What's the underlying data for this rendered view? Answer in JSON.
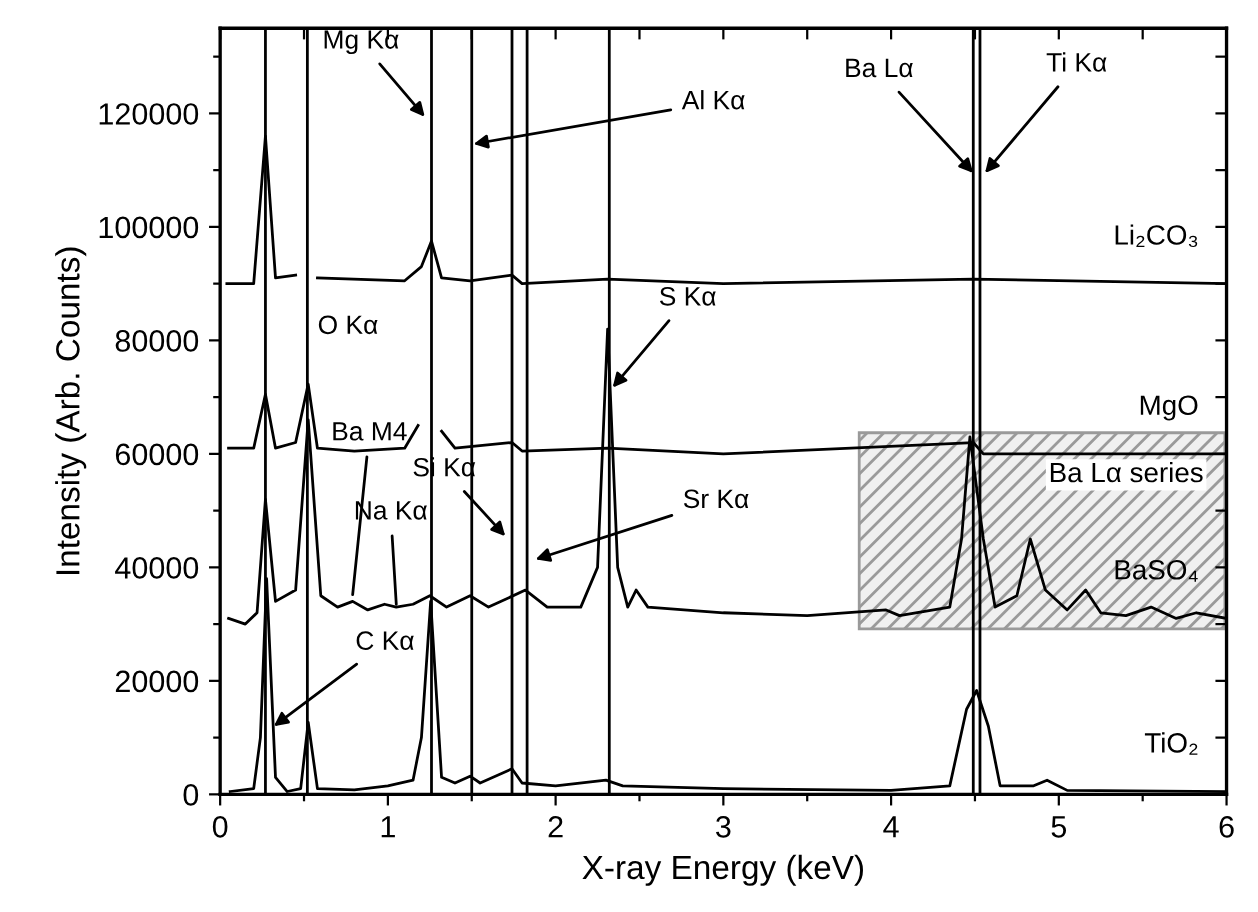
{
  "chart_data": {
    "type": "line",
    "xlabel": "X-ray Energy (keV)",
    "ylabel": "Intensity (Arb. Counts)",
    "xlim": [
      0,
      6
    ],
    "ylim": [
      0,
      135000
    ],
    "xticks": [
      0,
      {
        "value": 0.5,
        "label": null
      },
      1,
      {
        "value": 1.5,
        "label": null
      },
      2,
      {
        "value": 2.5,
        "label": null
      },
      3,
      {
        "value": 3.5,
        "label": null
      },
      4,
      {
        "value": 4.5,
        "label": null
      },
      5,
      {
        "value": 5.5,
        "label": null
      },
      6
    ],
    "yticks": [
      0,
      {
        "value": 10000,
        "label": null
      },
      20000,
      {
        "value": 30000,
        "label": null
      },
      40000,
      {
        "value": 50000,
        "label": null
      },
      60000,
      {
        "value": 70000,
        "label": null
      },
      80000,
      {
        "value": 90000,
        "label": null
      },
      100000,
      {
        "value": 110000,
        "label": null
      },
      120000,
      {
        "value": 130000,
        "label": null
      }
    ],
    "grid": false,
    "legend": "right",
    "marker": "none",
    "line_style": "solid",
    "series": [
      {
        "name": "Li₂CO₃",
        "color": "#000000",
        "x": [
          0.04,
          0.2,
          0.27,
          0.33,
          0.45,
          0.525,
          0.58,
          1.1,
          1.2,
          1.26,
          1.32,
          1.49,
          1.74,
          1.8,
          2.31,
          3.0,
          4.49,
          6.0
        ],
        "values": [
          90000,
          90000,
          116000,
          91000,
          91500,
          null,
          91000,
          90500,
          93000,
          97500,
          91000,
          90500,
          91500,
          90000,
          90800,
          90000,
          90800,
          90000
        ]
      },
      {
        "name": "MgO",
        "color": "#000000",
        "x": [
          0.05,
          0.2,
          0.27,
          0.33,
          0.45,
          0.525,
          0.58,
          0.8,
          1.1,
          1.18,
          1.25,
          1.32,
          1.4,
          1.74,
          1.8,
          2.31,
          3.0,
          4.49,
          4.55,
          6.0
        ],
        "values": [
          61000,
          61000,
          70500,
          61000,
          62000,
          72300,
          61000,
          60500,
          61000,
          65000,
          null,
          64000,
          61000,
          62000,
          60500,
          61000,
          60000,
          62000,
          60000,
          60000
        ]
      },
      {
        "name": "BaSO₄",
        "color": "#000000",
        "x": [
          0.05,
          0.15,
          0.22,
          0.27,
          0.33,
          0.45,
          0.525,
          0.6,
          0.7,
          0.79,
          0.88,
          0.98,
          1.05,
          1.15,
          1.25,
          1.35,
          1.49,
          1.6,
          1.82,
          1.95,
          2.15,
          2.25,
          2.31,
          2.37,
          2.43,
          2.48,
          2.55,
          3.0,
          3.5,
          3.97,
          4.05,
          4.35,
          4.42,
          4.47,
          4.55,
          4.62,
          4.75,
          4.83,
          4.92,
          5.05,
          5.16,
          5.25,
          5.4,
          5.55,
          5.7,
          5.82,
          6.0
        ],
        "values": [
          31000,
          30000,
          32000,
          52000,
          34000,
          36000,
          66000,
          35000,
          33000,
          34000,
          32500,
          33500,
          33000,
          33500,
          35000,
          33000,
          35000,
          33000,
          36000,
          33000,
          33000,
          40000,
          82000,
          40000,
          33000,
          36000,
          33000,
          32000,
          31500,
          32500,
          31500,
          33000,
          45000,
          63000,
          45000,
          33000,
          35000,
          45000,
          36000,
          32500,
          36000,
          32000,
          31500,
          33000,
          31000,
          32000,
          31000
        ]
      },
      {
        "name": "TiO₂",
        "color": "#000000",
        "x": [
          0.06,
          0.2,
          0.24,
          0.277,
          0.33,
          0.4,
          0.48,
          0.525,
          0.58,
          0.8,
          1.0,
          1.15,
          1.2,
          1.255,
          1.32,
          1.4,
          1.49,
          1.55,
          1.74,
          1.8,
          2.0,
          2.3,
          2.4,
          3.0,
          4.0,
          4.35,
          4.45,
          4.51,
          4.58,
          4.65,
          4.85,
          4.93,
          5.05,
          6.0
        ],
        "values": [
          500,
          1000,
          10000,
          38000,
          3000,
          500,
          1000,
          12700,
          1000,
          800,
          1500,
          2500,
          10000,
          34000,
          3000,
          2000,
          3200,
          2000,
          4500,
          2000,
          1500,
          2500,
          1500,
          1000,
          700,
          1500,
          15000,
          18300,
          12000,
          1500,
          1500,
          2500,
          700,
          500
        ]
      }
    ],
    "ref_lines": [
      {
        "axis": "x",
        "value": 0.27,
        "color": "#000000"
      },
      {
        "axis": "x",
        "value": 0.52,
        "color": "#000000"
      },
      {
        "axis": "x",
        "value": 1.26,
        "color": "#000000"
      },
      {
        "axis": "x",
        "value": 1.5,
        "color": "#000000"
      },
      {
        "axis": "x",
        "value": 1.74,
        "color": "#000000"
      },
      {
        "axis": "x",
        "value": 1.83,
        "color": "#000000"
      },
      {
        "axis": "x",
        "value": 2.32,
        "color": "#000000"
      },
      {
        "axis": "x",
        "value": 4.49,
        "color": "#000000"
      },
      {
        "axis": "x",
        "value": 4.53,
        "color": "#000000"
      }
    ],
    "bands": [
      {
        "axis": "x",
        "from": 3.81,
        "to": 5.99,
        "label": "Ba Lα series",
        "color": "#9a9a9a"
      }
    ],
    "annotations": [
      {
        "text": "Mg Kα",
        "x": 1.22,
        "y": 119400
      },
      {
        "text": "Al Kα",
        "x": 1.51,
        "y": 114600
      },
      "O Kα",
      {
        "text": "C Kα",
        "x": 0.32,
        "y": 12000
      },
      {
        "text": "Ba M4",
        "x": 0.79,
        "y": 35200
      },
      {
        "text": "Na Kα",
        "x": 1.05,
        "y": 33500
      },
      {
        "text": "Si Kα",
        "x": 1.7,
        "y": 45500
      },
      {
        "text": "Sr Kα",
        "x": 1.88,
        "y": 41400
      },
      {
        "text": "S Kα",
        "x": 2.34,
        "y": 71700
      },
      {
        "text": "Ba Lα",
        "x": 4.49,
        "y": 109500
      },
      {
        "text": "Ti Kα",
        "x": 4.56,
        "y": 109500
      }
    ]
  }
}
